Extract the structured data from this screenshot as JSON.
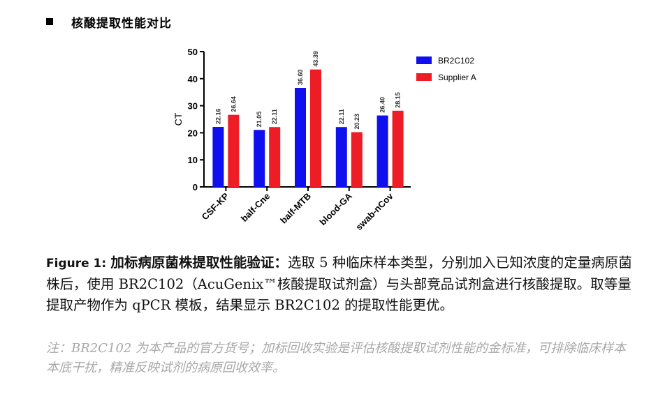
{
  "heading": {
    "title": "核酸提取性能对比"
  },
  "chart_data": {
    "type": "bar",
    "categories": [
      "CSF-KP",
      "balf-Cne",
      "balf-MTB",
      "blood-GA",
      "swab-nCov"
    ],
    "series": [
      {
        "name": "BR2C102",
        "color": "#1010ee",
        "values": [
          22.16,
          21.05,
          36.6,
          22.11,
          26.4
        ],
        "labels": [
          "22.16",
          "21.05",
          "36.60",
          "22.11",
          "26.40"
        ]
      },
      {
        "name": "Supplier A",
        "color": "#ee1c24",
        "values": [
          26.64,
          22.11,
          43.39,
          20.23,
          28.15
        ],
        "labels": [
          "26.64",
          "22.11",
          "43.39",
          "20.23",
          "28.15"
        ]
      }
    ],
    "ylabel": "CT",
    "ylim": [
      0,
      50
    ],
    "yticks": [
      "0",
      "10",
      "20",
      "30",
      "40",
      "50"
    ],
    "legend_position": "top-right",
    "grid": false
  },
  "caption": {
    "label": "Figure 1:",
    "title": "加标病原菌株提取性能验证：",
    "body": "选取 5 种临床样本类型，分别加入已知浓度的定量病原菌株后，使用 BR2C102（AcuGenix™核酸提取试剂盒）与头部竞品试剂盒进行核酸提取。取等量提取产物作为 qPCR 模板，结果显示 BR2C102 的提取性能更优。"
  },
  "note": {
    "text": "注：BR2C102 为本产品的官方货号；加标回收实验是评估核酸提取试剂性能的金标准，可排除临床样本本底干扰，精准反映试剂的病原回收效率。"
  }
}
